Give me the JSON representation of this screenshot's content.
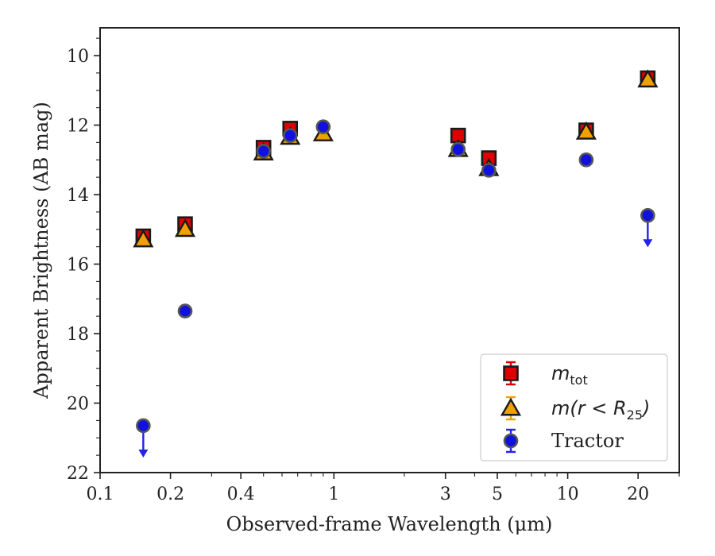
{
  "chart_data": {
    "type": "scatter",
    "xlabel": "Observed-frame Wavelength (μm)",
    "ylabel": "Apparent Brightness (AB mag)",
    "xscale": "log",
    "xlim": [
      0.1,
      30
    ],
    "ylim": [
      22,
      9.2
    ],
    "y_inverted": true,
    "x_ticks": [
      0.1,
      0.2,
      0.4,
      1,
      3,
      5,
      10,
      20
    ],
    "x_tick_labels": [
      "0.1",
      "0.2",
      "0.4",
      "1",
      "3",
      "5",
      "10",
      "20"
    ],
    "y_ticks": [
      10,
      12,
      14,
      16,
      18,
      20,
      22
    ],
    "y_tick_labels": [
      "10",
      "12",
      "14",
      "16",
      "18",
      "20",
      "22"
    ],
    "grid": false,
    "legend_position": "bottom-right",
    "series": [
      {
        "name_main": "m",
        "name_sub": "tot",
        "marker": "square",
        "color": "#e00000",
        "points": [
          {
            "x": 0.153,
            "y": 15.2
          },
          {
            "x": 0.231,
            "y": 14.85
          },
          {
            "x": 0.5,
            "y": 12.65
          },
          {
            "x": 0.65,
            "y": 12.1
          },
          {
            "x": 3.4,
            "y": 12.3
          },
          {
            "x": 4.6,
            "y": 12.95
          },
          {
            "x": 12.0,
            "y": 12.15
          },
          {
            "x": 22.0,
            "y": 10.65
          }
        ]
      },
      {
        "name_main": "m(r < R",
        "name_sub": "25",
        "name_end": ")",
        "marker": "triangle",
        "color": "#f0a000",
        "points": [
          {
            "x": 0.153,
            "y": 15.3
          },
          {
            "x": 0.231,
            "y": 15.0
          },
          {
            "x": 0.5,
            "y": 12.8
          },
          {
            "x": 0.65,
            "y": 12.35
          },
          {
            "x": 0.9,
            "y": 12.25
          },
          {
            "x": 3.4,
            "y": 12.7
          },
          {
            "x": 4.6,
            "y": 13.25
          },
          {
            "x": 12.0,
            "y": 12.2
          },
          {
            "x": 22.0,
            "y": 10.7
          }
        ]
      },
      {
        "name": "Tractor",
        "marker": "circle",
        "color": "#1010e0",
        "points": [
          {
            "x": 0.153,
            "y": 20.65,
            "upper_limit": true
          },
          {
            "x": 0.231,
            "y": 17.35
          },
          {
            "x": 0.5,
            "y": 12.75
          },
          {
            "x": 0.65,
            "y": 12.3
          },
          {
            "x": 0.9,
            "y": 12.05
          },
          {
            "x": 3.4,
            "y": 12.7
          },
          {
            "x": 4.6,
            "y": 13.3
          },
          {
            "x": 12.0,
            "y": 13.0
          },
          {
            "x": 22.0,
            "y": 14.6,
            "upper_limit": true
          }
        ]
      }
    ]
  }
}
